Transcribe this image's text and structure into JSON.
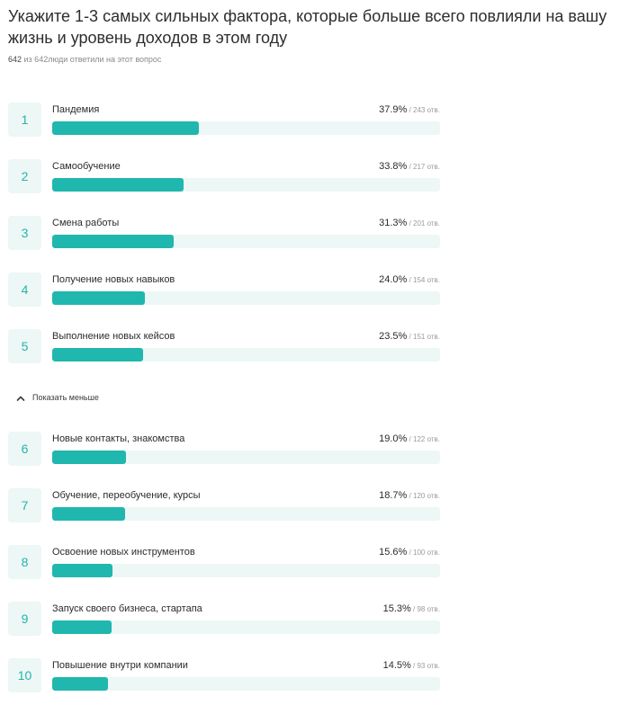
{
  "question": {
    "title": "Укажите 1-3 самых сильных фактора, которые больше всего повлияли на вашу жизнь и уровень доходов в этом году",
    "answered_count": "642",
    "respondents_suffix": " из 642люди ответили на этот вопрос"
  },
  "toggle_label": "Показать меньше",
  "colors": {
    "bar_fill": "#1fb7ae",
    "bar_track": "#ecf7f6",
    "number_text": "#27b3aa"
  },
  "answers": [
    {
      "rank": "1",
      "label": "Пандемия",
      "percent_text": "37.9%",
      "count_text": " / 243 отв.",
      "percent": 37.9
    },
    {
      "rank": "2",
      "label": "Самообучение",
      "percent_text": "33.8%",
      "count_text": " / 217 отв.",
      "percent": 33.8
    },
    {
      "rank": "3",
      "label": "Смена работы",
      "percent_text": "31.3%",
      "count_text": " / 201 отв.",
      "percent": 31.3
    },
    {
      "rank": "4",
      "label": "Получение новых навыков",
      "percent_text": "24.0%",
      "count_text": " / 154 отв.",
      "percent": 24.0
    },
    {
      "rank": "5",
      "label": "Выполнение новых кейсов",
      "percent_text": "23.5%",
      "count_text": " / 151 отв.",
      "percent": 23.5
    },
    {
      "rank": "6",
      "label": "Новые контакты, знакомства",
      "percent_text": "19.0%",
      "count_text": " / 122 отв.",
      "percent": 19.0
    },
    {
      "rank": "7",
      "label": "Обучение, переобучение, курсы",
      "percent_text": "18.7%",
      "count_text": " / 120 отв.",
      "percent": 18.7
    },
    {
      "rank": "8",
      "label": "Освоение новых инструментов",
      "percent_text": "15.6%",
      "count_text": " / 100 отв.",
      "percent": 15.6
    },
    {
      "rank": "9",
      "label": "Запуск своего бизнеса, стартапа",
      "percent_text": "15.3%",
      "count_text": " / 98 отв.",
      "percent": 15.3
    },
    {
      "rank": "10",
      "label": "Повышение внутри компании",
      "percent_text": "14.5%",
      "count_text": " / 93 отв.",
      "percent": 14.5
    }
  ]
}
